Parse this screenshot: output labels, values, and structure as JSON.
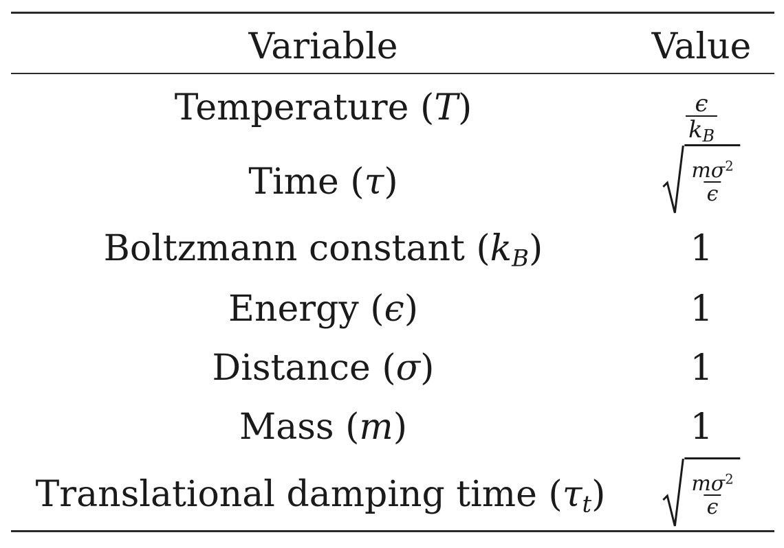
{
  "table": {
    "header": {
      "variable": "Variable",
      "value": "Value"
    },
    "rows": [
      {
        "label": "Temperature",
        "symbol": "T",
        "value_num": "ϵ",
        "value_den": "k",
        "value_den_sub": "B"
      },
      {
        "label": "Time",
        "symbol": "τ",
        "value_num": "mσ",
        "value_num_sup": "2",
        "value_den": "ϵ"
      },
      {
        "label": "Boltzmann constant",
        "symbol": "k",
        "symbol_sub": "B",
        "value": "1"
      },
      {
        "label": "Energy",
        "symbol": "ϵ",
        "value": "1"
      },
      {
        "label": "Distance",
        "symbol": "σ",
        "value": "1"
      },
      {
        "label": "Mass",
        "symbol": "m",
        "value": "1"
      },
      {
        "label": "Translational damping time",
        "symbol": "τ",
        "symbol_sub": "t",
        "value_num": "mσ",
        "value_num_sup": "2",
        "value_den": "ϵ"
      }
    ]
  }
}
